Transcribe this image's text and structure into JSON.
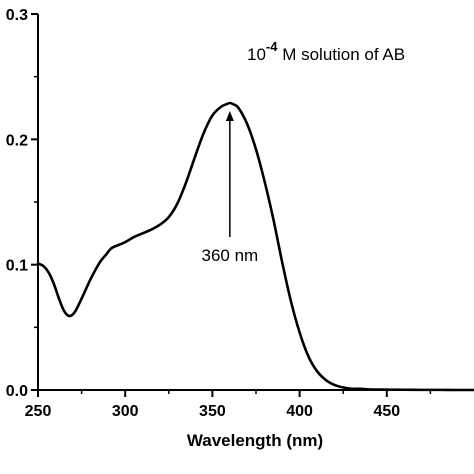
{
  "chart_data": {
    "type": "line",
    "title": "",
    "xlabel": "Wavelength (nm)",
    "ylabel": "",
    "xlim": [
      250,
      500
    ],
    "ylim": [
      0.0,
      0.3
    ],
    "x_ticks": [
      250,
      300,
      350,
      400,
      450
    ],
    "x_tick_labels": [
      "250",
      "300",
      "350",
      "400",
      "450"
    ],
    "y_ticks": [
      0.0,
      0.1,
      0.2,
      0.3
    ],
    "y_tick_labels": [
      "0.0",
      "0.1",
      "0.2",
      "0.3"
    ],
    "grid": false,
    "series": [
      {
        "color": "#000000",
        "x": [
          250,
          253,
          256,
          259,
          262,
          265,
          268,
          271,
          274,
          277,
          280,
          283,
          286,
          289,
          292,
          295,
          300,
          305,
          310,
          315,
          320,
          325,
          330,
          335,
          340,
          345,
          350,
          355,
          358,
          360,
          362,
          365,
          370,
          375,
          380,
          385,
          390,
          395,
          400,
          405,
          410,
          415,
          420,
          425,
          430,
          435,
          440,
          450,
          460,
          470,
          480,
          490,
          500
        ],
        "y": [
          0.101,
          0.099,
          0.094,
          0.085,
          0.073,
          0.063,
          0.059,
          0.062,
          0.07,
          0.079,
          0.088,
          0.096,
          0.103,
          0.108,
          0.113,
          0.115,
          0.118,
          0.122,
          0.125,
          0.128,
          0.132,
          0.138,
          0.149,
          0.166,
          0.186,
          0.205,
          0.219,
          0.226,
          0.228,
          0.229,
          0.228,
          0.225,
          0.212,
          0.192,
          0.166,
          0.136,
          0.102,
          0.071,
          0.046,
          0.027,
          0.015,
          0.008,
          0.004,
          0.002,
          0.001,
          0.001,
          0.0005,
          0.0003,
          0.0002,
          0.0001,
          0.0001,
          0.0,
          0.0
        ]
      }
    ],
    "annotations": {
      "legend_text_prefix": "10",
      "legend_superscript": "-4",
      "legend_text_suffix": " M solution of AB",
      "peak_label": "360 nm",
      "peak_x": 360,
      "peak_y": 0.229
    }
  }
}
